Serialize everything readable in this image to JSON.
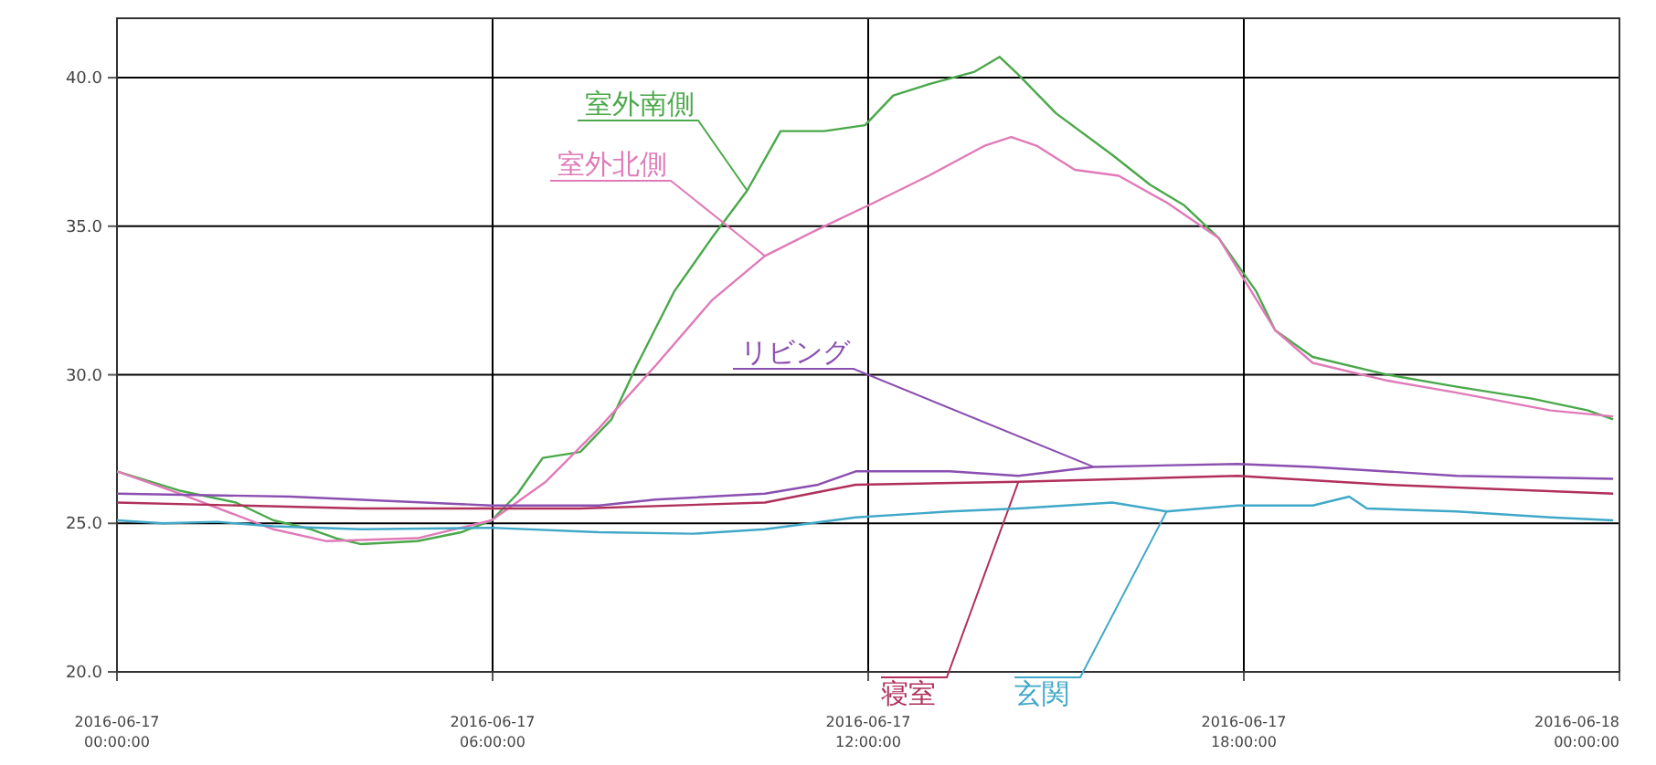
{
  "chart_data": {
    "type": "line",
    "xlim": [
      "2016-06-17T00:00",
      "2016-06-18T00:00"
    ],
    "xticks": [
      {
        "value": "2016-06-17T00:00",
        "label": "2016-06-17 00:00:00"
      },
      {
        "value": "2016-06-17T06:00",
        "label": "2016-06-17 06:00:00"
      },
      {
        "value": "2016-06-17T12:00",
        "label": "2016-06-17 12:00:00"
      },
      {
        "value": "2016-06-17T18:00",
        "label": "2016-06-17 18:00:00"
      },
      {
        "value": "2016-06-18T00:00",
        "label": "2016-06-18 00:00:00"
      }
    ],
    "ylim": [
      20,
      42
    ],
    "yticks": [
      {
        "value": 20,
        "label": "20.0"
      },
      {
        "value": 25,
        "label": "25.0"
      },
      {
        "value": 30,
        "label": "30.0"
      },
      {
        "value": 35,
        "label": "35.0"
      },
      {
        "value": 40,
        "label": "40.0"
      }
    ],
    "grid": true,
    "marker": "none",
    "line_style": "solid",
    "series": [
      {
        "name": "室外南側",
        "color": "#4aa84a",
        "x": [
          "2016-06-17T00:00",
          "2016-06-17T01:00",
          "2016-06-17T01:54",
          "2016-06-17T02:30",
          "2016-06-17T03:06",
          "2016-06-17T03:30",
          "2016-06-17T03:54",
          "2016-06-17T04:48",
          "2016-06-17T05:30",
          "2016-06-17T05:59",
          "2016-06-17T06:24",
          "2016-06-17T06:48",
          "2016-06-17T07:24",
          "2016-06-17T07:54",
          "2016-06-17T08:18",
          "2016-06-17T08:54",
          "2016-06-17T09:30",
          "2016-06-17T10:04",
          "2016-06-17T10:36",
          "2016-06-17T11:18",
          "2016-06-17T11:57",
          "2016-06-17T12:24",
          "2016-06-17T13:00",
          "2016-06-17T13:42",
          "2016-06-17T14:06",
          "2016-06-17T14:24",
          "2016-06-17T15:00",
          "2016-06-17T15:54",
          "2016-06-17T16:30",
          "2016-06-17T17:03",
          "2016-06-17T17:36",
          "2016-06-17T18:12",
          "2016-06-17T18:30",
          "2016-06-17T19:06",
          "2016-06-17T20:18",
          "2016-06-17T21:24",
          "2016-06-17T22:36",
          "2016-06-17T23:30",
          "2016-06-17T23:54"
        ],
        "values": [
          26.75,
          26.1,
          25.7,
          25.1,
          24.8,
          24.5,
          24.3,
          24.4,
          24.7,
          25.1,
          26.0,
          27.2,
          27.4,
          28.5,
          30.3,
          32.8,
          34.6,
          36.2,
          38.2,
          38.2,
          38.4,
          39.4,
          39.8,
          40.2,
          40.7,
          40.1,
          38.8,
          37.4,
          36.4,
          35.7,
          34.6,
          32.8,
          31.5,
          30.6,
          30.0,
          29.6,
          29.2,
          28.8,
          28.5
        ]
      },
      {
        "name": "室外北側",
        "color": "#e07ab8",
        "x": [
          "2016-06-17T00:00",
          "2016-06-17T01:00",
          "2016-06-17T02:30",
          "2016-06-17T03:21",
          "2016-06-17T04:48",
          "2016-06-17T05:59",
          "2016-06-17T06:51",
          "2016-06-17T07:42",
          "2016-06-17T08:36",
          "2016-06-17T09:30",
          "2016-06-17T10:21",
          "2016-06-17T11:12",
          "2016-06-17T12:06",
          "2016-06-17T12:58",
          "2016-06-17T13:51",
          "2016-06-17T14:17",
          "2016-06-17T14:42",
          "2016-06-17T15:18",
          "2016-06-17T16:00",
          "2016-06-17T16:46",
          "2016-06-17T17:36",
          "2016-06-17T18:30",
          "2016-06-17T19:06",
          "2016-06-17T20:18",
          "2016-06-17T21:24",
          "2016-06-17T22:54",
          "2016-06-17T23:54"
        ],
        "values": [
          26.75,
          26.0,
          24.8,
          24.4,
          24.5,
          25.1,
          26.4,
          28.2,
          30.3,
          32.5,
          34.0,
          34.9,
          35.8,
          36.7,
          37.7,
          38.0,
          37.7,
          36.9,
          36.7,
          35.8,
          34.6,
          31.5,
          30.4,
          29.8,
          29.4,
          28.8,
          28.6
        ]
      },
      {
        "name": "リビング",
        "color": "#8a4fb0",
        "x": [
          "2016-06-17T00:00",
          "2016-06-17T02:46",
          "2016-06-17T05:59",
          "2016-06-17T07:42",
          "2016-06-17T08:36",
          "2016-06-17T10:21",
          "2016-06-17T11:12",
          "2016-06-17T11:48",
          "2016-06-17T13:18",
          "2016-06-17T14:24",
          "2016-06-17T15:36",
          "2016-06-17T17:54",
          "2016-06-17T19:06",
          "2016-06-17T21:24",
          "2016-06-17T23:54"
        ],
        "values": [
          26.0,
          25.9,
          25.6,
          25.6,
          25.8,
          26.0,
          26.3,
          26.75,
          26.75,
          26.6,
          26.9,
          27.0,
          26.9,
          26.6,
          26.5
        ]
      },
      {
        "name": "寝室",
        "color": "#b0305a",
        "x": [
          "2016-06-17T00:00",
          "2016-06-17T03:54",
          "2016-06-17T07:24",
          "2016-06-17T10:21",
          "2016-06-17T11:48",
          "2016-06-17T14:24",
          "2016-06-17T17:54",
          "2016-06-17T20:18",
          "2016-06-17T23:54"
        ],
        "values": [
          25.7,
          25.5,
          25.5,
          25.7,
          26.3,
          26.4,
          26.6,
          26.3,
          26.0
        ]
      },
      {
        "name": "玄関",
        "color": "#40a8c8",
        "x": [
          "2016-06-17T00:00",
          "2016-06-17T00:44",
          "2016-06-17T01:36",
          "2016-06-17T02:30",
          "2016-06-17T03:54",
          "2016-06-17T05:59",
          "2016-06-17T07:42",
          "2016-06-17T09:12",
          "2016-06-17T10:21",
          "2016-06-17T11:48",
          "2016-06-17T13:18",
          "2016-06-17T14:24",
          "2016-06-17T15:54",
          "2016-06-17T16:46",
          "2016-06-17T17:54",
          "2016-06-17T19:06",
          "2016-06-17T19:41",
          "2016-06-17T19:58",
          "2016-06-17T21:24",
          "2016-06-17T22:54",
          "2016-06-17T23:54"
        ],
        "values": [
          25.1,
          25.0,
          25.05,
          24.9,
          24.8,
          24.85,
          24.7,
          24.65,
          24.8,
          25.2,
          25.4,
          25.5,
          25.7,
          25.4,
          25.6,
          25.6,
          25.9,
          25.5,
          25.4,
          25.2,
          25.1
        ]
      }
    ]
  }
}
